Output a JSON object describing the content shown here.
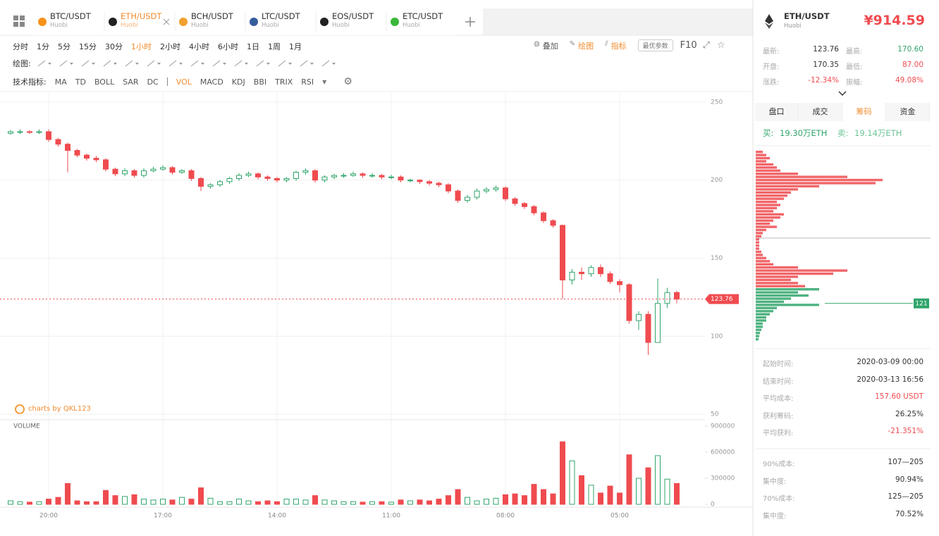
{
  "ui": {
    "tabs": [
      {
        "symbol": "BTC/USDT",
        "exchange": "Huobi"
      },
      {
        "symbol": "ETH/USDT",
        "exchange": "Huobi"
      },
      {
        "symbol": "BCH/USDT",
        "exchange": "Huobi"
      },
      {
        "symbol": "LTC/USDT",
        "exchange": "Huobi"
      },
      {
        "symbol": "EOS/USDT",
        "exchange": "Huobi"
      },
      {
        "symbol": "ETC/USDT",
        "exchange": "Huobi"
      }
    ],
    "active_tab": 1,
    "periods": [
      "分时",
      "1分",
      "5分",
      "15分",
      "30分",
      "1小时",
      "2小时",
      "4小时",
      "6小时",
      "1日",
      "1周",
      "1月"
    ],
    "active_period": 5,
    "tools": [
      "叠加",
      "绘图",
      "指标"
    ],
    "param_button": "最优参数",
    "f10": "F10",
    "draw_label": "绘图:",
    "indicator_label": "技术指标:",
    "indicators_main": [
      "MA",
      "TD",
      "BOLL",
      "SAR",
      "DC"
    ],
    "indicators_sub": [
      "VOL",
      "MACD",
      "KDJ",
      "BBI",
      "TRIX",
      "RSI"
    ],
    "active_indicator": 0,
    "watermark": "charts by QKL123"
  },
  "sidebar": {
    "symbol": "ETH/USDT",
    "exchange": "Huobi",
    "price": "¥914.59",
    "stats": [
      [
        "最新:",
        "123.76",
        "最高:",
        "170.60"
      ],
      [
        "开盘:",
        "170.35",
        "最低:",
        "87.00"
      ],
      [
        "涨跌:",
        "-12.34%",
        "振幅:",
        "49.08%"
      ]
    ],
    "tabs": [
      "盘口",
      "成交",
      "筹码",
      "资金"
    ],
    "active_tab": 2,
    "buy_label": "买:",
    "buy": "19.30万ETH",
    "sell_label": "卖:",
    "sell": "19.14万ETH",
    "info": [
      [
        "起始时间:",
        "2020-03-09 00:00"
      ],
      [
        "结束时间:",
        "2020-03-13 16:56"
      ],
      [
        "平均成本:",
        "157.60 USDT"
      ],
      [
        "获利筹码:",
        "26.25%"
      ],
      [
        "平均获利:",
        "-21.351%"
      ]
    ],
    "info2": [
      [
        "90%成本:",
        "107—205"
      ],
      [
        "集中度:",
        "90.94%"
      ],
      [
        "70%成本:",
        "125—205"
      ],
      [
        "集中度:",
        "70.52%"
      ]
    ]
  },
  "chart_data": [
    {
      "type": "candlestick",
      "categories": [
        null,
        null,
        null,
        null,
        "20:00",
        null,
        null,
        null,
        null,
        null,
        null,
        null,
        null,
        null,
        null,
        null,
        "17:00",
        null,
        null,
        null,
        null,
        null,
        null,
        null,
        null,
        null,
        null,
        null,
        "14:00",
        null,
        null,
        null,
        null,
        null,
        null,
        null,
        null,
        null,
        null,
        null,
        "11:00",
        null,
        null,
        null,
        null,
        null,
        null,
        null,
        null,
        null,
        null,
        null,
        "08:00",
        null,
        null,
        null,
        null,
        null,
        null,
        null,
        null,
        null,
        null,
        null,
        "05:00",
        null,
        null,
        null,
        null,
        null,
        null
      ],
      "open": [
        230,
        231,
        231,
        230.5,
        231,
        226,
        223,
        219,
        216,
        214,
        213,
        207,
        204,
        206,
        203,
        206,
        207,
        208,
        205,
        206,
        201,
        196,
        197,
        199,
        201,
        203,
        204,
        202,
        201,
        200,
        201,
        205,
        206,
        200,
        202,
        203,
        203,
        204,
        203,
        203,
        202,
        202,
        200,
        200,
        199,
        198,
        197,
        193,
        187,
        189,
        193,
        194,
        195,
        188,
        185,
        183,
        179,
        174,
        171,
        136,
        141,
        140,
        144,
        140,
        135,
        133,
        110,
        114,
        96,
        121,
        128
      ],
      "high": [
        232,
        232.5,
        232,
        232.5,
        232.5,
        227,
        224,
        220,
        217,
        215.5,
        214,
        208,
        207.5,
        207,
        207.5,
        208.5,
        209.5,
        209,
        207,
        207,
        202,
        198,
        200,
        202,
        204.5,
        205.5,
        205,
        203,
        202,
        202,
        206,
        207.5,
        207,
        203,
        204,
        204.5,
        205.5,
        205,
        204.5,
        204,
        203.5,
        203,
        201,
        200.5,
        200,
        199,
        198,
        194,
        190.5,
        194.5,
        195.5,
        196.5,
        196,
        189,
        186,
        184,
        180,
        175,
        171.5,
        143,
        144,
        145.5,
        146,
        141.5,
        136.5,
        134,
        116,
        116,
        137,
        131,
        129
      ],
      "low": [
        229,
        229.5,
        229.5,
        229.5,
        224.5,
        221.5,
        205,
        214.5,
        212.5,
        211.5,
        205.5,
        202.5,
        202.5,
        201.5,
        201.5,
        205,
        206,
        203.5,
        204,
        199.5,
        193,
        194.5,
        195.5,
        197.5,
        199.5,
        202,
        200.5,
        199.5,
        198.5,
        198.5,
        199.5,
        203.5,
        198.5,
        198.5,
        200.5,
        201.5,
        202,
        201.5,
        201.5,
        200.5,
        200.5,
        198.5,
        198.5,
        197.5,
        196.5,
        195.5,
        191.5,
        185.5,
        185.5,
        187.5,
        191.5,
        192.5,
        186.5,
        183.5,
        181.5,
        177.5,
        172.5,
        169.5,
        124,
        133,
        136,
        138,
        138,
        133.5,
        128,
        108,
        104,
        88,
        96,
        118,
        121
      ],
      "close": [
        231,
        231,
        230.5,
        231,
        226,
        223,
        219,
        216,
        214,
        213,
        207,
        204,
        206,
        203,
        206,
        207,
        208,
        205,
        206,
        201,
        196,
        197,
        199,
        201,
        203,
        204,
        202,
        201,
        200,
        201,
        205,
        206,
        200,
        202,
        203,
        203,
        204,
        203,
        203,
        202,
        202,
        200,
        200,
        199,
        198,
        197,
        193,
        187,
        189,
        193,
        194,
        195,
        188,
        185,
        183,
        179,
        174,
        171,
        136,
        141,
        140,
        144,
        140,
        135,
        133,
        110,
        114,
        96,
        121,
        128,
        123.76
      ],
      "ylim": [
        46,
        254
      ],
      "yticks": [
        50,
        100,
        150,
        200,
        250
      ],
      "up_color": "#2fa56a",
      "down_color": "#ef4b4f",
      "last_price": 123.76,
      "grid": true
    },
    {
      "type": "bar",
      "title": "VOLUME",
      "values": [
        40000,
        30000,
        25000,
        30000,
        60000,
        80000,
        240000,
        40000,
        30000,
        30000,
        160000,
        100000,
        90000,
        110000,
        60000,
        50000,
        60000,
        50000,
        80000,
        60000,
        190000,
        70000,
        30000,
        30000,
        60000,
        40000,
        30000,
        40000,
        30000,
        60000,
        60000,
        50000,
        100000,
        50000,
        40000,
        30000,
        30000,
        25000,
        30000,
        30000,
        25000,
        50000,
        40000,
        50000,
        40000,
        60000,
        100000,
        170000,
        80000,
        40000,
        60000,
        70000,
        110000,
        120000,
        100000,
        230000,
        170000,
        120000,
        720000,
        500000,
        330000,
        220000,
        130000,
        210000,
        130000,
        570000,
        300000,
        420000,
        560000,
        290000,
        240000
      ],
      "ylim": [
        0,
        900000
      ],
      "yticks": [
        0,
        300000,
        600000,
        900000
      ]
    },
    {
      "type": "barh",
      "series": [
        {
          "color": "#ef4b4f",
          "levels": [
            218,
            216,
            214,
            212,
            210,
            208,
            206,
            204,
            202,
            200,
            198,
            196,
            194,
            192,
            190,
            188,
            186,
            184,
            182,
            180,
            178,
            176,
            174,
            172,
            170,
            168,
            166,
            164,
            162,
            160,
            158,
            156,
            154,
            152,
            150,
            148,
            146,
            144,
            142,
            140,
            138,
            136,
            134,
            132
          ],
          "values": [
            10,
            15,
            20,
            15,
            25,
            30,
            35,
            60,
            130,
            180,
            170,
            90,
            60,
            50,
            45,
            40,
            30,
            35,
            30,
            25,
            40,
            35,
            25,
            20,
            30,
            15,
            10,
            8,
            5,
            5,
            5,
            5,
            8,
            10,
            15,
            20,
            25,
            60,
            130,
            110,
            60,
            50,
            60,
            70
          ]
        },
        {
          "color": "#2fa56a",
          "levels": [
            130,
            128,
            126,
            124,
            122,
            120,
            118,
            116,
            114,
            112,
            110,
            108,
            106,
            104,
            102,
            100,
            98
          ],
          "values": [
            90,
            60,
            75,
            50,
            40,
            90,
            30,
            25,
            20,
            15,
            15,
            10,
            10,
            8,
            6,
            5,
            4
          ]
        }
      ],
      "marker": 121
    }
  ]
}
